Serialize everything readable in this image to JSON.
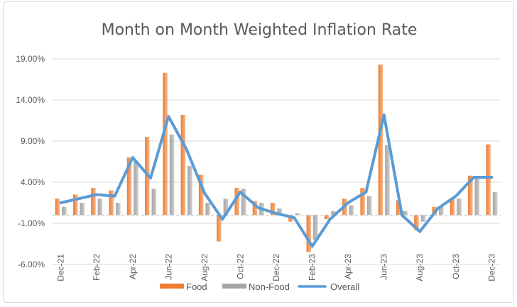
{
  "chart_data": {
    "type": "bar",
    "title": "Month on Month Weighted Inflation Rate",
    "xlabel": "",
    "ylabel": "",
    "ylim": [
      -6,
      19
    ],
    "y_ticks": [
      -6,
      -1,
      4,
      9,
      14,
      19
    ],
    "y_tick_labels": [
      "-6.00%",
      "-1.00%",
      "4.00%",
      "9.00%",
      "14.00%",
      "19.00%"
    ],
    "categories": [
      "Dec-21",
      "Jan-22",
      "Feb-22",
      "Mar-22",
      "Apr-22",
      "May-22",
      "Jun-22",
      "Jul-22",
      "Aug-22",
      "Sep-22",
      "Oct-22",
      "Nov-22",
      "Dec-22",
      "Jan-23",
      "Feb-23",
      "Mar-23",
      "Apr-23",
      "May-23",
      "Jun-23",
      "Jul-23",
      "Aug-23",
      "Sep-23",
      "Oct-23",
      "Nov-23",
      "Dec-23"
    ],
    "x_tick_labels": [
      "Dec-21",
      "",
      "Feb-22",
      "",
      "Apr-22",
      "",
      "Jun-22",
      "",
      "Aug-22",
      "",
      "Oct-22",
      "",
      "Dec-22",
      "",
      "Feb-23",
      "",
      "Apr-23",
      "",
      "Jun-23",
      "",
      "Aug-23",
      "",
      "Oct-23",
      "",
      "Dec-23"
    ],
    "series": [
      {
        "name": "Food",
        "type": "bar",
        "color": "#ed7d31",
        "values": [
          2.0,
          2.5,
          3.3,
          3.0,
          7.0,
          9.5,
          17.3,
          12.2,
          4.9,
          -3.2,
          3.3,
          1.7,
          1.5,
          -0.8,
          -4.5,
          -0.5,
          2.0,
          3.3,
          18.3,
          1.8,
          -1.8,
          1.0,
          2.0,
          4.8,
          8.6
        ]
      },
      {
        "name": "Non-Food",
        "type": "bar",
        "color": "#a5a5a5",
        "values": [
          1.0,
          1.5,
          2.0,
          1.5,
          6.5,
          3.2,
          9.8,
          6.0,
          1.5,
          2.0,
          3.2,
          1.5,
          0.8,
          0.2,
          -3.0,
          0.5,
          1.2,
          2.3,
          8.5,
          0.5,
          -0.8,
          1.0,
          2.0,
          4.5,
          2.8
        ]
      },
      {
        "name": "Overall",
        "type": "line",
        "color": "#5b9bd5",
        "values": [
          1.5,
          2.0,
          2.5,
          2.3,
          7.0,
          4.5,
          12.0,
          8.0,
          2.7,
          -0.5,
          2.8,
          0.9,
          0.2,
          -0.3,
          -3.8,
          -0.5,
          1.5,
          2.8,
          12.2,
          0.0,
          -2.0,
          0.8,
          2.3,
          4.6,
          4.6
        ]
      }
    ],
    "legend": [
      "Food",
      "Non-Food",
      "Overall"
    ],
    "legend_position": "bottom",
    "grid": true
  }
}
